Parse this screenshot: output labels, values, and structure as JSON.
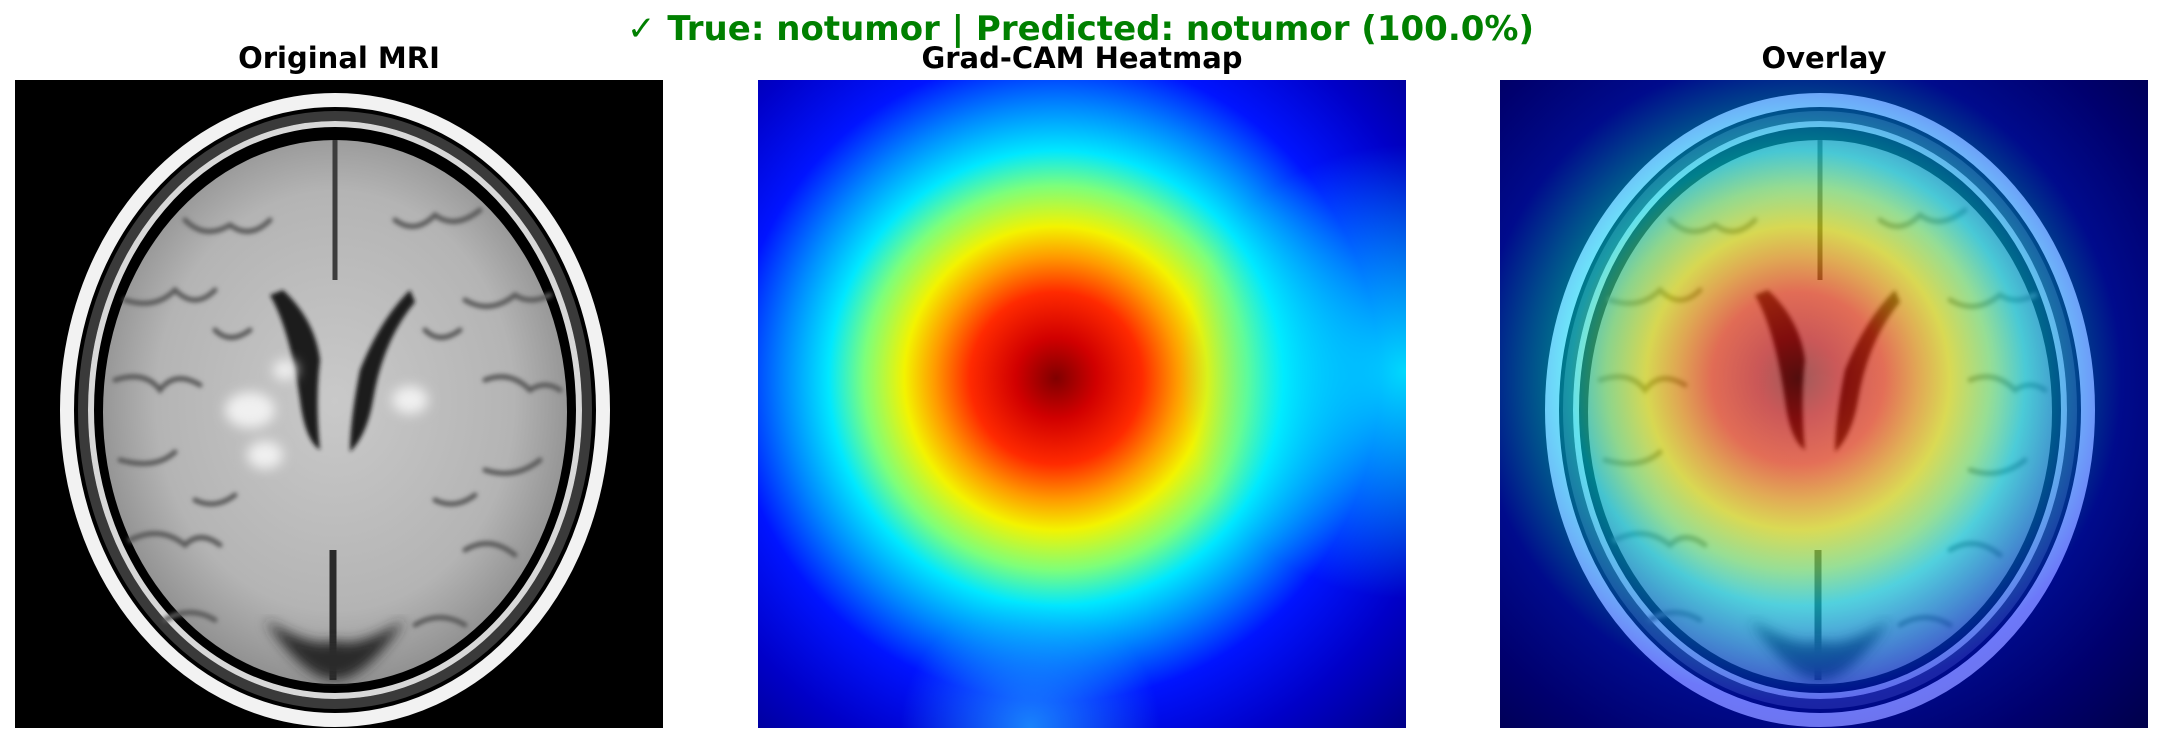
{
  "figure": {
    "suptitle": {
      "check_icon": "✓",
      "text": "True: notumor | Predicted: notumor (100.0%)",
      "color": "#008000"
    },
    "panels": [
      {
        "title": "Original MRI",
        "image": "axial-brain-mri-flair"
      },
      {
        "title": "Grad-CAM Heatmap",
        "image": "jet-colormap-heatmap"
      },
      {
        "title": "Overlay",
        "image": "heatmap-over-mri"
      }
    ]
  }
}
